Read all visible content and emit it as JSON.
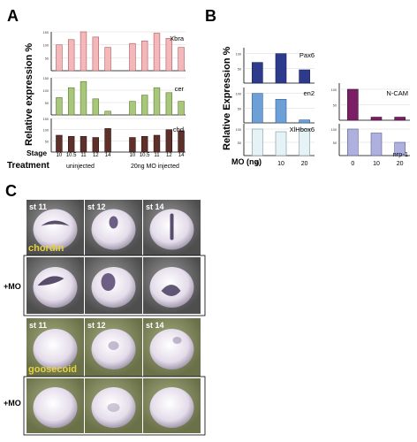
{
  "panel_a": {
    "letter": "A",
    "ylabel": "Relative expression %",
    "stage_label": "Stage",
    "treatment_label": "Treatment",
    "stages": [
      "10",
      "10.5",
      "11",
      "12",
      "14",
      "10",
      "10.5",
      "11",
      "12",
      "14"
    ],
    "groups": [
      "uninjected",
      "20ng MO injected"
    ]
  },
  "panel_b": {
    "letter": "B",
    "ylabel": "Relative Expression %",
    "xlabel": "MO (ng)",
    "doses": [
      "0",
      "10",
      "20"
    ]
  },
  "panel_c": {
    "letter": "C",
    "stages": [
      "st 11",
      "st 12",
      "st 14"
    ],
    "probe_chordin": "chordin",
    "probe_goosecoid": "goosecoid",
    "mo_label": "+MO"
  },
  "chart_data": [
    {
      "type": "bar",
      "title": "Xbra",
      "categories": [
        "10",
        "10.5",
        "11",
        "12",
        "14",
        "10",
        "10.5",
        "11",
        "12",
        "14"
      ],
      "values": [
        100,
        120,
        150,
        130,
        90,
        105,
        115,
        145,
        125,
        90
      ],
      "ylim": [
        0,
        150
      ],
      "ticks": [
        "150",
        "100",
        "50"
      ],
      "color": "#f4b8ba",
      "edge": "#a85c62"
    },
    {
      "type": "bar",
      "title": "cer",
      "categories": [
        "10",
        "10.5",
        "11",
        "12",
        "14",
        "10",
        "10.5",
        "11",
        "12",
        "14"
      ],
      "values": [
        70,
        110,
        135,
        65,
        15,
        55,
        80,
        110,
        90,
        55
      ],
      "ylim": [
        0,
        150
      ],
      "ticks": [
        "150",
        "100",
        "50"
      ],
      "color": "#a9c77b",
      "edge": "#5a7830"
    },
    {
      "type": "bar",
      "title": "chd",
      "categories": [
        "10",
        "10.5",
        "11",
        "12",
        "14",
        "10",
        "10.5",
        "11",
        "12",
        "14"
      ],
      "values": [
        75,
        70,
        70,
        65,
        105,
        65,
        70,
        75,
        100,
        95
      ],
      "ylim": [
        0,
        150
      ],
      "ticks": [
        "150",
        "100",
        "50"
      ],
      "color": "#5e302a",
      "edge": "#2e1410"
    },
    {
      "type": "bar",
      "title": "Pax6",
      "categories": [
        "0",
        "10",
        "20"
      ],
      "values": [
        70,
        100,
        45
      ],
      "ylim": [
        0,
        120
      ],
      "ticks": [
        "100",
        "50"
      ],
      "color": "#2e3a8c",
      "edge": "#141c55"
    },
    {
      "type": "bar",
      "title": "en2",
      "categories": [
        "0",
        "10",
        "20"
      ],
      "values": [
        100,
        80,
        10
      ],
      "ylim": [
        0,
        120
      ],
      "ticks": [
        "100",
        "50"
      ],
      "color": "#6ea0d8",
      "edge": "#2e5c95"
    },
    {
      "type": "bar",
      "title": "XlHbox6",
      "categories": [
        "0",
        "10",
        "20"
      ],
      "values": [
        100,
        90,
        100
      ],
      "ylim": [
        0,
        120
      ],
      "ticks": [
        "100",
        "50"
      ],
      "color": "#e5f3f6",
      "edge": "#7895a0"
    },
    {
      "type": "bar",
      "title": "N-CAM",
      "categories": [
        "0",
        "10",
        "20"
      ],
      "values": [
        100,
        10,
        10
      ],
      "ylim": [
        0,
        120
      ],
      "ticks": [
        "100",
        "50"
      ],
      "color": "#7a1e66",
      "edge": "#40103a"
    },
    {
      "type": "bar",
      "title": "nrp-1",
      "categories": [
        "0",
        "10",
        "20"
      ],
      "values": [
        100,
        85,
        50
      ],
      "ylim": [
        0,
        120
      ],
      "ticks": [
        "100",
        "50"
      ],
      "color": "#aeb0dd",
      "edge": "#5a5c95"
    }
  ]
}
